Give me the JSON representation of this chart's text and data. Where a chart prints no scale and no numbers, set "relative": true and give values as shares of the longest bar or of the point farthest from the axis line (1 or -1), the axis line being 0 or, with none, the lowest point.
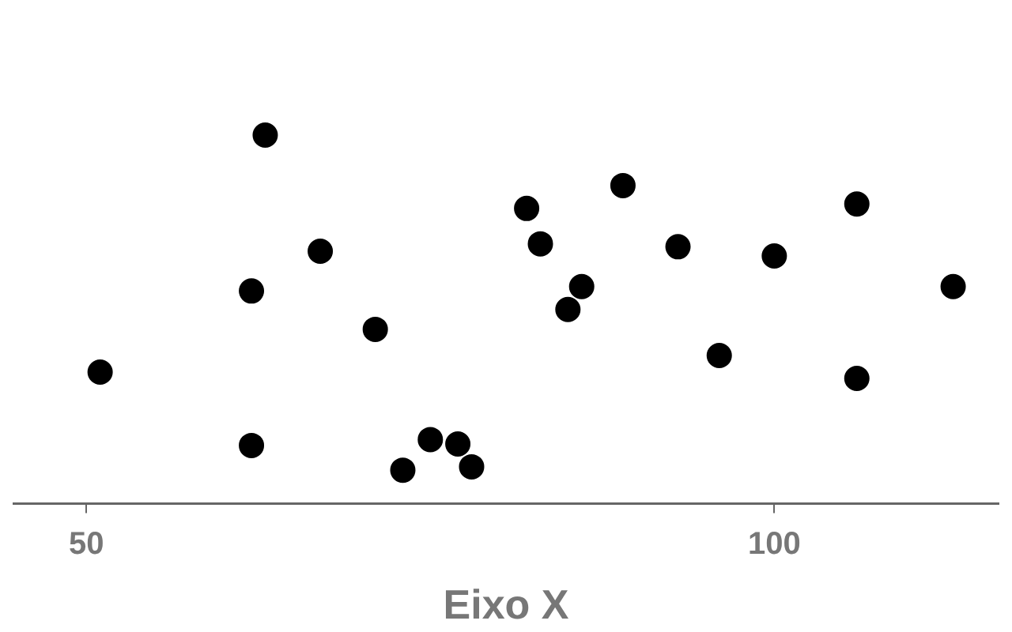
{
  "chart_data": {
    "type": "scatter",
    "xlabel": "Eixo X",
    "relative": true,
    "marker": "circle",
    "grid": false,
    "xlim": [
      44.7,
      116.3
    ],
    "xticks": [
      50,
      100
    ],
    "series": [
      {
        "color": "#000000",
        "x": [
          51,
          63,
          62,
          62,
          67,
          71,
          73,
          75,
          77,
          78,
          82,
          83,
          85,
          86,
          89,
          93,
          96,
          100,
          106,
          106,
          113
        ],
        "values": [
          0.357,
          1,
          0.577,
          0.158,
          0.685,
          0.473,
          0.091,
          0.174,
          0.162,
          0.1,
          0.801,
          0.705,
          0.527,
          0.589,
          0.863,
          0.697,
          0.402,
          0.672,
          0.813,
          0.34,
          0.589
        ]
      }
    ]
  }
}
